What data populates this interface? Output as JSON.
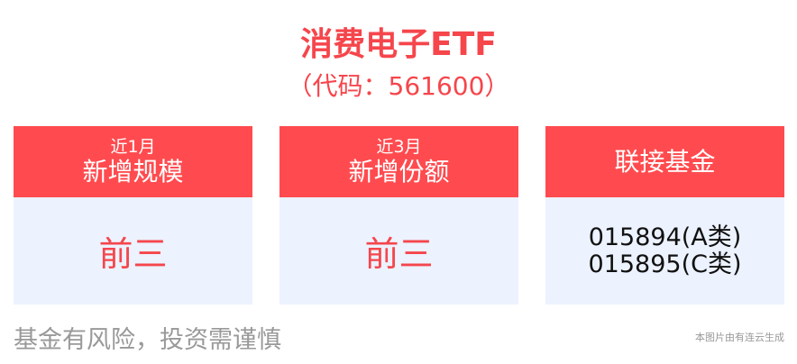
{
  "title": "消费电子ETF",
  "code": "（代码：561600）",
  "cards": [
    {
      "sub": "近1月",
      "main": "新增规模",
      "value": "前三"
    },
    {
      "sub": "近3月",
      "main": "新增份额",
      "value": "前三"
    },
    {
      "main": "联接基金",
      "funds": [
        "015894(A类)",
        "015895(C类)"
      ]
    }
  ],
  "risk": "基金有风险，投资需谨慎",
  "credit": "本图片由有连云生成",
  "colors": {
    "accent": "#ff4b4f",
    "panel": "#ecf2fe"
  }
}
